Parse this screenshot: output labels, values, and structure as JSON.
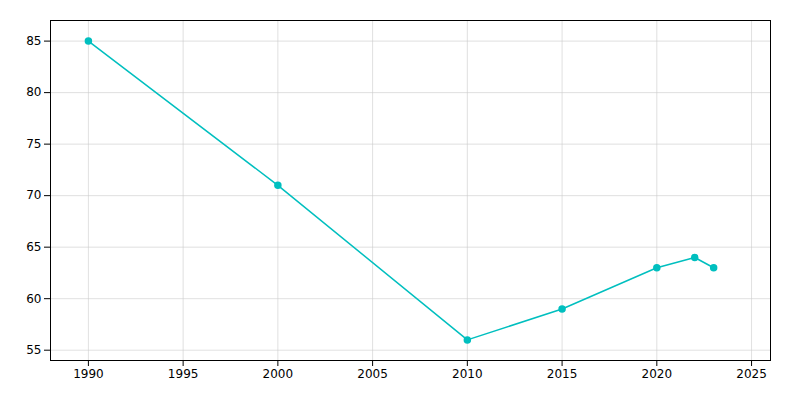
{
  "chart_data": {
    "type": "line",
    "x": [
      1990,
      2000,
      2010,
      2015,
      2020,
      2022,
      2023
    ],
    "values": [
      85,
      71,
      56,
      59,
      63,
      64,
      63
    ],
    "color": "#00BFBF",
    "marker": "circle",
    "xlim": [
      1988,
      2026
    ],
    "ylim": [
      54,
      87
    ],
    "xticks": [
      1990,
      1995,
      2000,
      2005,
      2010,
      2015,
      2020,
      2025
    ],
    "yticks": [
      55,
      60,
      65,
      70,
      75,
      80,
      85
    ],
    "grid": true
  }
}
